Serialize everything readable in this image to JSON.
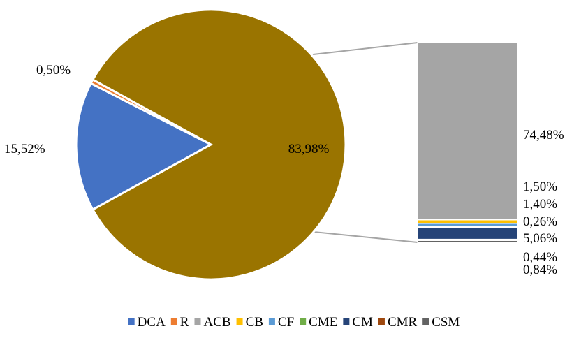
{
  "chart_data": {
    "type": "bar-of-pie",
    "pie": {
      "slices": [
        {
          "series": "DCA",
          "value": 15.52,
          "label": "15,52%"
        },
        {
          "series": "R",
          "value": 0.5,
          "label": "0,50%"
        },
        {
          "series": "Other",
          "value": 83.98,
          "label": "83,98%"
        }
      ]
    },
    "bar": {
      "segments": [
        {
          "series": "CSM",
          "value": 0.84,
          "label": "0,84%"
        },
        {
          "series": "CMR",
          "value": 0.44,
          "label": "0,44%"
        },
        {
          "series": "CM",
          "value": 5.06,
          "label": "5,06%"
        },
        {
          "series": "CME",
          "value": 0.26,
          "label": "0,26%"
        },
        {
          "series": "CF",
          "value": 1.4,
          "label": "1,40%"
        },
        {
          "series": "CB",
          "value": 1.5,
          "label": "1,50%"
        },
        {
          "series": "ACB",
          "value": 74.48,
          "label": "74,48%"
        }
      ]
    },
    "legend": {
      "position": "bottom",
      "items": [
        "DCA",
        "R",
        "ACB",
        "CB",
        "CF",
        "CME",
        "CM",
        "CMR",
        "CSM"
      ]
    },
    "colors": {
      "DCA": "#4472c4",
      "R": "#ed7d31",
      "ACB": "#a5a5a5",
      "CB": "#ffc000",
      "CF": "#5b9bd5",
      "CME": "#70ad47",
      "CM": "#264478",
      "CMR": "#9e480e",
      "CSM": "#636363",
      "Other": "#9a7400",
      "connector": "#a5a5a5"
    }
  }
}
